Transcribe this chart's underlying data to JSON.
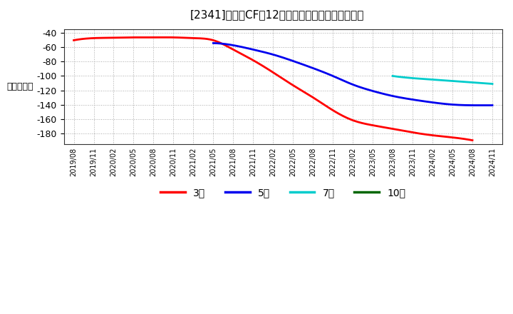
{
  "title": "[2341]　投賄CFの12か月移動合計の平均値の推移",
  "ylabel": "（百万円）",
  "background_color": "#ffffff",
  "plot_bg_color": "#ffffff",
  "grid_color": "#aaaaaa",
  "ylim": [
    -195,
    -35
  ],
  "yticks": [
    -180,
    -160,
    -140,
    -120,
    -100,
    -80,
    -60,
    -40
  ],
  "legend_labels": [
    "3年",
    "5年",
    "7年",
    "10年"
  ],
  "legend_colors": [
    "#ff0000",
    "#0000ee",
    "#00cccc",
    "#006600"
  ],
  "x_labels": [
    "2019/08",
    "2019/11",
    "2020/02",
    "2020/05",
    "2020/08",
    "2020/11",
    "2021/02",
    "2021/05",
    "2021/08",
    "2021/11",
    "2022/02",
    "2022/05",
    "2022/08",
    "2022/11",
    "2023/02",
    "2023/05",
    "2023/08",
    "2023/11",
    "2024/02",
    "2024/05",
    "2024/08",
    "2024/11"
  ],
  "series_3y": {
    "x_indices": [
      0,
      1,
      2,
      3,
      4,
      5,
      6,
      7,
      8,
      9,
      10,
      11,
      12,
      13,
      14,
      15,
      16,
      17,
      18,
      19,
      20
    ],
    "values": [
      -50,
      -47,
      -46.5,
      -46,
      -46,
      -46,
      -47,
      -50,
      -63,
      -78,
      -95,
      -113,
      -130,
      -148,
      -162,
      -169,
      -174,
      -179,
      -183,
      -186,
      -190
    ]
  },
  "series_5y": {
    "x_indices": [
      7,
      8,
      9,
      10,
      11,
      12,
      13,
      14,
      15,
      16,
      17,
      18,
      19,
      20,
      21
    ],
    "values": [
      -54,
      -57,
      -63,
      -70,
      -79,
      -89,
      -100,
      -112,
      -121,
      -128,
      -133,
      -137,
      -140,
      -141,
      -141
    ]
  },
  "series_7y": {
    "x_indices": [
      16,
      17,
      18,
      19,
      20,
      21
    ],
    "values": [
      -100,
      -103,
      -105,
      -107,
      -109,
      -111
    ]
  },
  "series_10y": {
    "x_indices": [],
    "values": []
  }
}
